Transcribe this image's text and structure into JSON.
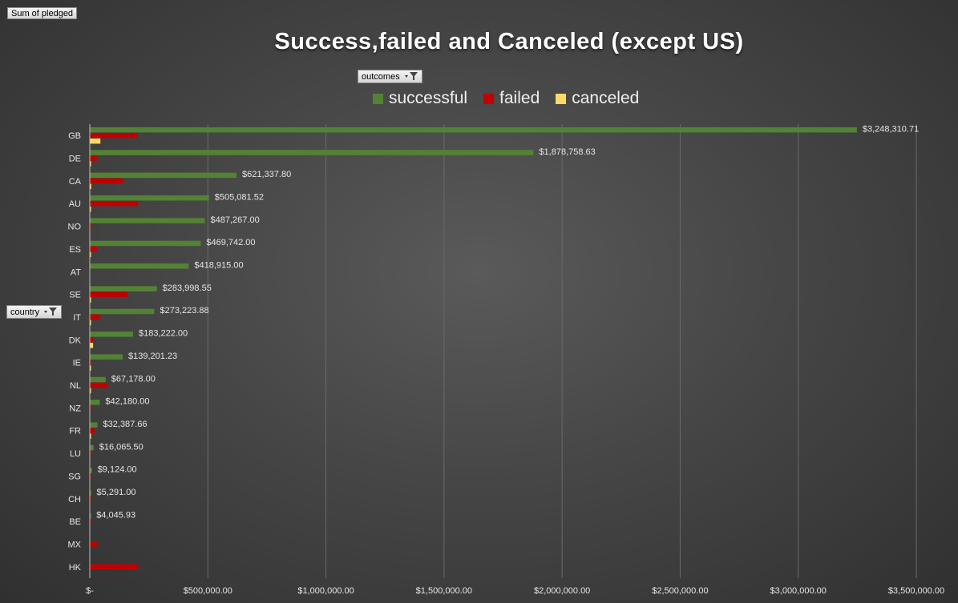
{
  "pivot": {
    "value_field": "Sum of pledged",
    "series_field": "outcomes",
    "axis_field": "country"
  },
  "colors": {
    "successful": "#548235",
    "failed": "#c00000",
    "canceled": "#ffd966"
  },
  "chart_data": {
    "type": "bar",
    "orientation": "horizontal",
    "title": "Success,failed and Canceled (except US)",
    "categories": [
      "GB",
      "DE",
      "CA",
      "AU",
      "NO",
      "ES",
      "AT",
      "SE",
      "IT",
      "DK",
      "IE",
      "NL",
      "NZ",
      "FR",
      "LU",
      "SG",
      "CH",
      "BE",
      "MX",
      "HK"
    ],
    "series": [
      {
        "name": "successful",
        "values": [
          3248310.71,
          1878758.63,
          621337.8,
          505081.52,
          487267.0,
          469742.0,
          418915.0,
          283998.55,
          273223.88,
          183222.0,
          139201.23,
          67178.0,
          42180.0,
          32387.66,
          16065.5,
          9124.0,
          5291.0,
          4045.93,
          0,
          0
        ]
      },
      {
        "name": "failed",
        "values": [
          200000,
          30000,
          140000,
          205000,
          4000,
          30000,
          0,
          160000,
          45000,
          15000,
          4000,
          75000,
          3000,
          20000,
          4000,
          2000,
          4000,
          2000,
          30000,
          205000
        ]
      },
      {
        "name": "canceled",
        "values": [
          45000,
          2000,
          6000,
          1000,
          0,
          2000,
          0,
          5000,
          2000,
          14000,
          2000,
          2000,
          0,
          2000,
          0,
          0,
          0,
          0,
          0,
          0
        ]
      }
    ],
    "data_labels": [
      "$3,248,310.71",
      "$1,878,758.63",
      "$621,337.80",
      "$505,081.52",
      "$487,267.00",
      "$469,742.00",
      "$418,915.00",
      "$283,998.55",
      "$273,223.88",
      "$183,222.00",
      "$139,201.23",
      "$67,178.00",
      "$42,180.00",
      "$32,387.66",
      "$16,065.50",
      "$9,124.00",
      "$5,291.00",
      "$4,045.93",
      "",
      ""
    ],
    "x_ticks": [
      0,
      500000,
      1000000,
      1500000,
      2000000,
      2500000,
      3000000,
      3500000
    ],
    "x_tick_labels": [
      "$-",
      "$500,000.00",
      "$1,000,000.00",
      "$1,500,000.00",
      "$2,000,000.00",
      "$2,500,000.00",
      "$3,000,000.00",
      "$3,500,000.00"
    ],
    "xlim": [
      0,
      3500000
    ],
    "legend": [
      "successful",
      "failed",
      "canceled"
    ],
    "legend_position": "top",
    "grid": "vertical"
  }
}
